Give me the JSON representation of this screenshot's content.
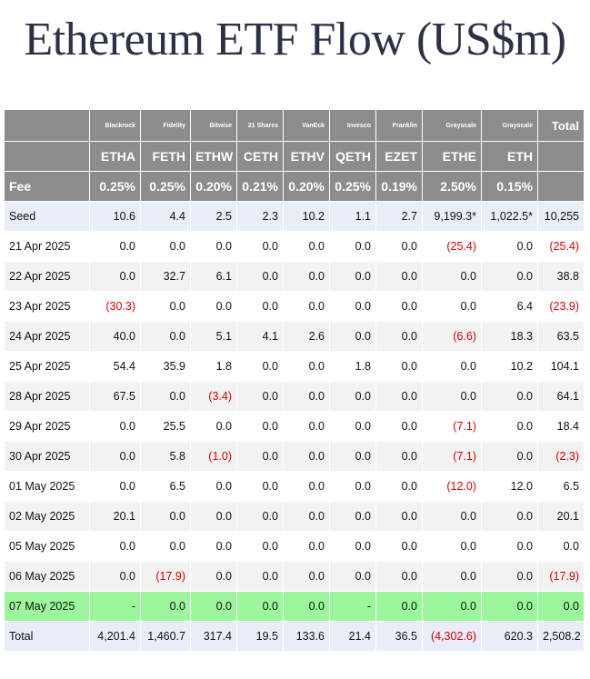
{
  "title": "Ethereum ETF Flow (US$m)",
  "colors": {
    "header_bg": "#8c8c8c",
    "negative": "#d40000",
    "highlight_row": "#9bf79b",
    "seed_total_bg": "#e8edf7",
    "zebra": "#f2f2f2",
    "title": "#2c3146"
  },
  "chart_data": {
    "type": "table",
    "title": "Ethereum ETF Flow (US$m)",
    "issuers": [
      "Blackrock",
      "Fidelity",
      "Bitwise",
      "21 Shares",
      "VanEck",
      "Invesco",
      "Franklin",
      "Grayscale",
      "Grayscale"
    ],
    "total_label": "Total",
    "tickers": [
      "ETHA",
      "FETH",
      "ETHW",
      "CETH",
      "ETHV",
      "QETH",
      "EZET",
      "ETHE",
      "ETH"
    ],
    "fee_label": "Fee",
    "fees": [
      "0.25%",
      "0.25%",
      "0.20%",
      "0.21%",
      "0.20%",
      "0.25%",
      "0.19%",
      "2.50%",
      "0.15%"
    ],
    "rows": [
      {
        "label": "Seed",
        "values": [
          "10.6",
          "4.4",
          "2.5",
          "2.3",
          "10.2",
          "1.1",
          "2.7",
          "9,199.3*",
          "1,022.5*"
        ],
        "total": "10,255"
      },
      {
        "label": "21 Apr 2025",
        "values": [
          "0.0",
          "0.0",
          "0.0",
          "0.0",
          "0.0",
          "0.0",
          "0.0",
          "(25.4)",
          "0.0"
        ],
        "total": "(25.4)"
      },
      {
        "label": "22 Apr 2025",
        "values": [
          "0.0",
          "32.7",
          "6.1",
          "0.0",
          "0.0",
          "0.0",
          "0.0",
          "0.0",
          "0.0"
        ],
        "total": "38.8"
      },
      {
        "label": "23 Apr 2025",
        "values": [
          "(30.3)",
          "0.0",
          "0.0",
          "0.0",
          "0.0",
          "0.0",
          "0.0",
          "0.0",
          "6.4"
        ],
        "total": "(23.9)"
      },
      {
        "label": "24 Apr 2025",
        "values": [
          "40.0",
          "0.0",
          "5.1",
          "4.1",
          "2.6",
          "0.0",
          "0.0",
          "(6.6)",
          "18.3"
        ],
        "total": "63.5"
      },
      {
        "label": "25 Apr 2025",
        "values": [
          "54.4",
          "35.9",
          "1.8",
          "0.0",
          "0.0",
          "1.8",
          "0.0",
          "0.0",
          "10.2"
        ],
        "total": "104.1"
      },
      {
        "label": "28 Apr 2025",
        "values": [
          "67.5",
          "0.0",
          "(3.4)",
          "0.0",
          "0.0",
          "0.0",
          "0.0",
          "0.0",
          "0.0"
        ],
        "total": "64.1"
      },
      {
        "label": "29 Apr 2025",
        "values": [
          "0.0",
          "25.5",
          "0.0",
          "0.0",
          "0.0",
          "0.0",
          "0.0",
          "(7.1)",
          "0.0"
        ],
        "total": "18.4"
      },
      {
        "label": "30 Apr 2025",
        "values": [
          "0.0",
          "5.8",
          "(1.0)",
          "0.0",
          "0.0",
          "0.0",
          "0.0",
          "(7.1)",
          "0.0"
        ],
        "total": "(2.3)"
      },
      {
        "label": "01 May 2025",
        "values": [
          "0.0",
          "6.5",
          "0.0",
          "0.0",
          "0.0",
          "0.0",
          "0.0",
          "(12.0)",
          "12.0"
        ],
        "total": "6.5"
      },
      {
        "label": "02 May 2025",
        "values": [
          "20.1",
          "0.0",
          "0.0",
          "0.0",
          "0.0",
          "0.0",
          "0.0",
          "0.0",
          "0.0"
        ],
        "total": "20.1"
      },
      {
        "label": "05 May 2025",
        "values": [
          "0.0",
          "0.0",
          "0.0",
          "0.0",
          "0.0",
          "0.0",
          "0.0",
          "0.0",
          "0.0"
        ],
        "total": "0.0"
      },
      {
        "label": "06 May 2025",
        "values": [
          "0.0",
          "(17.9)",
          "0.0",
          "0.0",
          "0.0",
          "0.0",
          "0.0",
          "0.0",
          "0.0"
        ],
        "total": "(17.9)"
      },
      {
        "label": "07 May 2025",
        "values": [
          "-",
          "0.0",
          "0.0",
          "0.0",
          "0.0",
          "-",
          "0.0",
          "0.0",
          "0.0"
        ],
        "total": "0.0"
      },
      {
        "label": "Total",
        "values": [
          "4,201.4",
          "1,460.7",
          "317.4",
          "19.5",
          "133.6",
          "21.4",
          "36.5",
          "(4,302.6)",
          "620.3"
        ],
        "total": "2,508.2"
      }
    ]
  }
}
